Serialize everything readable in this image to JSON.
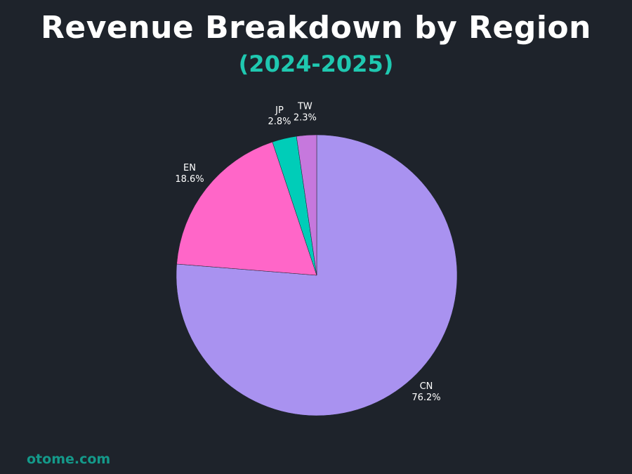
{
  "chart_data": {
    "type": "pie",
    "title": "Revenue Breakdown by Region",
    "subtitle": "(2024-2025)",
    "start": "top",
    "direction": "clockwise",
    "slices": [
      {
        "label": "CN",
        "value": 76.2,
        "display": "76.2%",
        "color": "#a992f0"
      },
      {
        "label": "EN",
        "value": 18.6,
        "display": "18.6%",
        "color": "#ff66c8"
      },
      {
        "label": "JP",
        "value": 2.8,
        "display": "2.8%",
        "color": "#00cdb8"
      },
      {
        "label": "TW",
        "value": 2.3,
        "display": "2.3%",
        "color": "#c678dd"
      }
    ]
  },
  "footer": "otome.com"
}
